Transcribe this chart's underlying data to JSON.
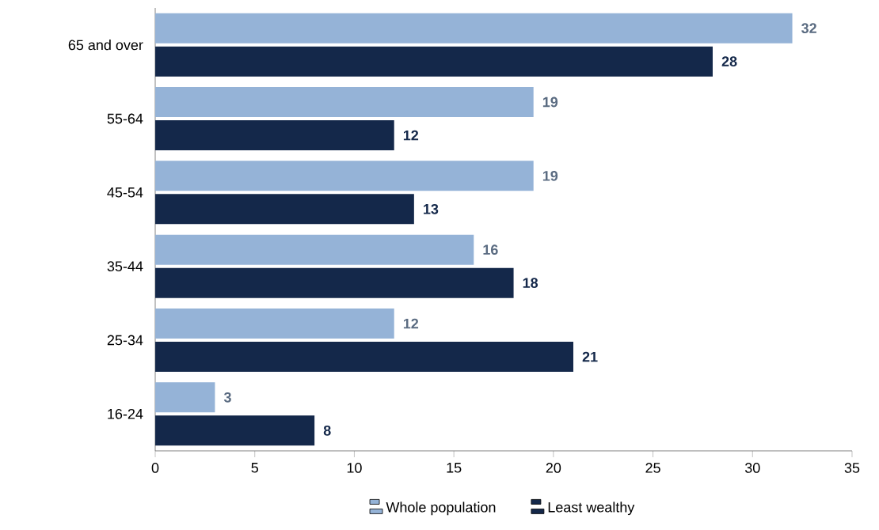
{
  "chart_data": {
    "type": "bar",
    "orientation": "horizontal",
    "categories": [
      "65 and over",
      "55-64",
      "45-54",
      "35-44",
      "25-34",
      "16-24"
    ],
    "series": [
      {
        "name": "Whole population",
        "color": "#95b3d7",
        "values": [
          32,
          19,
          19,
          16,
          12,
          3
        ]
      },
      {
        "name": "Least wealthy",
        "color": "#14284a",
        "values": [
          28,
          12,
          13,
          18,
          21,
          8
        ]
      }
    ],
    "xlim": [
      0,
      35
    ],
    "xticks": [
      0,
      5,
      10,
      15,
      20,
      25,
      30,
      35
    ],
    "data_labels": true,
    "legend": "bottom"
  }
}
